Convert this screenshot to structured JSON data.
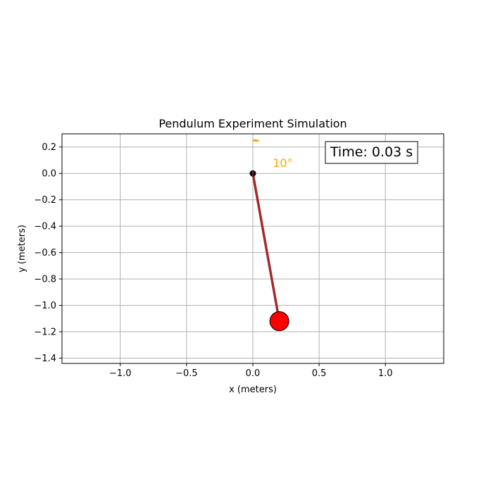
{
  "chart_data": {
    "type": "scatter",
    "title": "Pendulum Experiment Simulation",
    "xlabel": "x (meters)",
    "ylabel": "y (meters)",
    "xlim": [
      -1.44,
      1.44
    ],
    "ylim": [
      -1.44,
      0.3
    ],
    "xticks": [
      -1.0,
      -0.5,
      0.0,
      0.5,
      1.0
    ],
    "xtick_labels": [
      "−1.0",
      "−0.5",
      "0.0",
      "0.5",
      "1.0"
    ],
    "yticks": [
      0.2,
      0.0,
      -0.2,
      -0.4,
      -0.6,
      -0.8,
      -1.0,
      -1.2,
      -1.4
    ],
    "ytick_labels": [
      "0.2",
      "0.0",
      "−0.2",
      "−0.4",
      "−0.6",
      "−0.8",
      "−1.0",
      "−1.2",
      "−1.4"
    ],
    "grid": true,
    "pivot": {
      "x": 0.0,
      "y": 0.0
    },
    "bob": {
      "x": 0.2,
      "y": -1.12
    },
    "angle_arc": {
      "center_x": 0.0,
      "center_y": 0.0,
      "radius": 0.25,
      "from_deg": 90,
      "to_deg": 80
    },
    "angle_label": {
      "text": "10°",
      "x": 0.15,
      "y": 0.08
    },
    "time_text": "Time: 0.03 s",
    "colors": {
      "rod": "#a52a2a",
      "bob": "#ff0000",
      "pivot": "#000000",
      "arc": "#ffa500",
      "angle_label": "#ffa500",
      "grid": "#b0b0b0"
    }
  }
}
